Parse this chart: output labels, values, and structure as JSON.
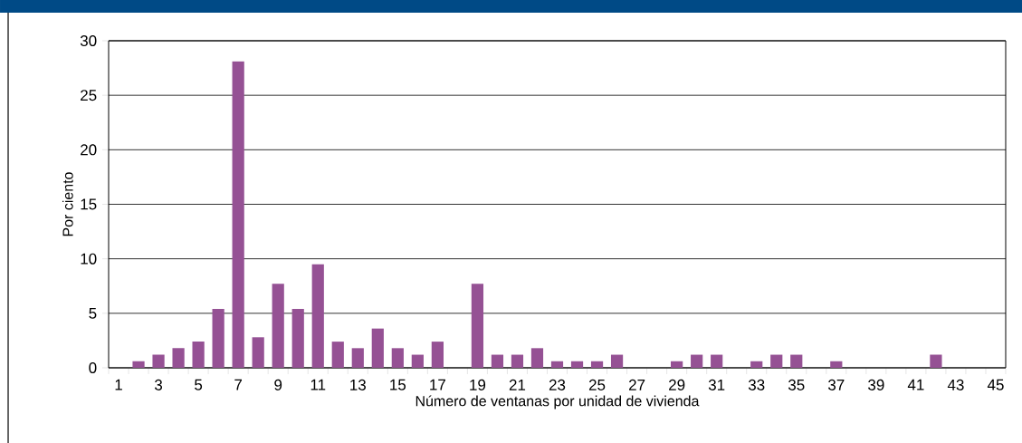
{
  "chart_data": {
    "type": "bar",
    "xlabel": "Número de ventanas por unidad de vivienda",
    "ylabel": "Por ciento",
    "categories": [
      "1",
      null,
      "3",
      null,
      "5",
      null,
      "7",
      null,
      "9",
      null,
      "11",
      null,
      "13",
      null,
      "15",
      null,
      "17",
      null,
      "19",
      null,
      "21",
      null,
      "23",
      null,
      "25",
      null,
      "27",
      null,
      "29",
      null,
      "31",
      null,
      "33",
      null,
      "35",
      null,
      "37",
      null,
      "39",
      null,
      "41",
      null,
      "43",
      null,
      "45"
    ],
    "values": [
      0,
      0.6,
      1.2,
      1.8,
      2.4,
      5.4,
      28.1,
      2.8,
      7.7,
      5.4,
      9.5,
      2.4,
      1.8,
      3.6,
      1.8,
      1.2,
      2.4,
      0,
      7.7,
      1.2,
      1.2,
      1.8,
      0.6,
      0.6,
      0.6,
      1.2,
      0,
      0,
      0.6,
      1.2,
      1.2,
      0,
      0.6,
      1.2,
      1.2,
      0,
      0.6,
      0,
      0,
      0,
      0,
      1.2,
      0,
      0,
      0
    ],
    "color": "#955194",
    "ylim": [
      0,
      30
    ],
    "yticks": [
      0,
      5,
      10,
      15,
      20,
      25,
      30
    ],
    "grid": "y"
  }
}
